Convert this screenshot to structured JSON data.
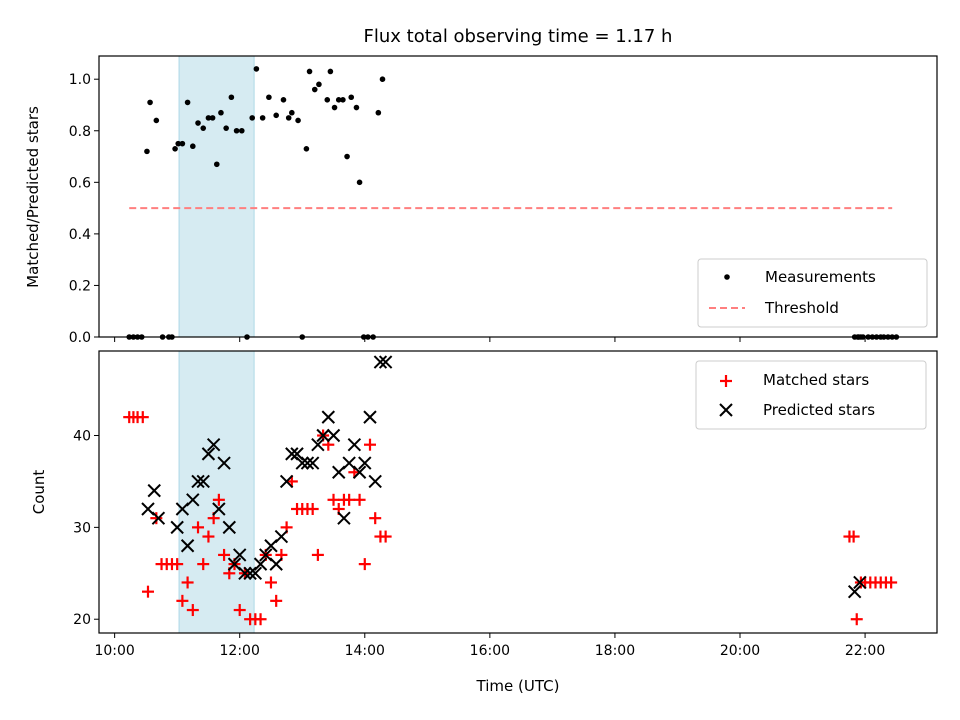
{
  "chart_data": [
    {
      "type": "scatter",
      "title": "Flux total observing time = 1.17 h",
      "xlabel": "",
      "ylabel": "Matched/Predicted stars",
      "xlim_hours": [
        9.75,
        23.15
      ],
      "ylim": [
        0,
        1.09
      ],
      "yticks": [
        0.0,
        0.2,
        0.4,
        0.6,
        0.8,
        1.0
      ],
      "ytick_labels": [
        "0.0",
        "0.2",
        "0.4",
        "0.6",
        "0.8",
        "1.0"
      ],
      "legend_position": "bottom-right",
      "shaded_span_hours": [
        11.03,
        12.23
      ],
      "shaded_color": "#add8e6",
      "series": [
        {
          "name": "Measurements",
          "marker": "dot",
          "color": "#000000",
          "x": [
            "10:14",
            "10:18",
            "10:22",
            "10:26",
            "10:31",
            "10:34",
            "10:40",
            "10:46",
            "10:52",
            "10:55",
            "10:58",
            "11:01",
            "11:05",
            "11:10",
            "11:15",
            "11:20",
            "11:25",
            "11:30",
            "11:34",
            "11:38",
            "11:42",
            "11:47",
            "11:52",
            "11:57",
            "12:02",
            "12:07",
            "12:12",
            "12:16",
            "12:22",
            "12:28",
            "12:35",
            "12:42",
            "12:47",
            "12:50",
            "12:56",
            "13:00",
            "13:04",
            "13:07",
            "13:12",
            "13:16",
            "13:24",
            "13:27",
            "13:31",
            "13:35",
            "13:39",
            "13:43",
            "13:47",
            "13:52",
            "13:55",
            "13:59",
            "14:03",
            "14:08",
            "14:13",
            "14:17",
            "21:50",
            "21:53",
            "21:54",
            "21:56",
            "21:58",
            "22:03",
            "22:07",
            "22:11",
            "22:15",
            "22:18",
            "22:22",
            "22:26",
            "22:30"
          ],
          "y": [
            0.0,
            0.0,
            0.0,
            0.0,
            0.72,
            0.91,
            0.84,
            0.0,
            0.0,
            0.0,
            0.73,
            0.75,
            0.75,
            0.91,
            0.74,
            0.83,
            0.81,
            0.85,
            0.85,
            0.67,
            0.87,
            0.81,
            0.93,
            0.8,
            0.8,
            0.0,
            0.85,
            1.04,
            0.85,
            0.93,
            0.86,
            0.92,
            0.85,
            0.87,
            0.84,
            0.0,
            0.73,
            1.03,
            0.96,
            0.98,
            0.92,
            1.03,
            0.89,
            0.92,
            0.92,
            0.7,
            0.93,
            0.89,
            0.6,
            0.0,
            0.0,
            0.0,
            0.87,
            1.0,
            0.0,
            0.0,
            0.0,
            0.0,
            0.0,
            0.0,
            0.0,
            0.0,
            0.0,
            0.0,
            0.0,
            0.0,
            0.0
          ]
        },
        {
          "name": "Threshold",
          "type": "line",
          "style": "dashed",
          "color": "#ff7f7f",
          "x": [
            "10:14",
            "22:26"
          ],
          "y": [
            0.5,
            0.5
          ]
        }
      ]
    },
    {
      "type": "scatter",
      "title": "",
      "xlabel": "Time (UTC)",
      "ylabel": "Count",
      "xlim_hours": [
        9.75,
        23.15
      ],
      "ylim": [
        18.5,
        49.2
      ],
      "yticks": [
        20,
        30,
        40
      ],
      "ytick_labels": [
        "20",
        "30",
        "40"
      ],
      "xticks_hours": [
        10,
        12,
        14,
        16,
        18,
        20,
        22
      ],
      "xtick_labels": [
        "10:00",
        "12:00",
        "14:00",
        "16:00",
        "18:00",
        "20:00",
        "22:00"
      ],
      "legend_position": "top-right",
      "shaded_span_hours": [
        11.03,
        12.23
      ],
      "shaded_color": "#add8e6",
      "series": [
        {
          "name": "Matched stars",
          "marker": "plus",
          "color": "#ff0000",
          "x": [
            "10:14",
            "10:18",
            "10:22",
            "10:27",
            "10:32",
            "10:40",
            "10:45",
            "10:50",
            "10:55",
            "11:00",
            "11:05",
            "11:10",
            "11:15",
            "11:20",
            "11:25",
            "11:30",
            "11:35",
            "11:40",
            "11:45",
            "11:50",
            "11:55",
            "12:00",
            "12:05",
            "12:10",
            "12:15",
            "12:20",
            "12:25",
            "12:30",
            "12:35",
            "12:40",
            "12:45",
            "12:50",
            "12:55",
            "13:00",
            "13:05",
            "13:10",
            "13:15",
            "13:20",
            "13:25",
            "13:30",
            "13:35",
            "13:40",
            "13:45",
            "13:50",
            "13:55",
            "14:00",
            "14:05",
            "14:10",
            "14:15",
            "14:20",
            "21:45",
            "21:49",
            "21:52",
            "21:56",
            "22:00",
            "22:05",
            "22:10",
            "22:15",
            "22:20",
            "22:25"
          ],
          "y": [
            42,
            42,
            42,
            42,
            23,
            31,
            26,
            26,
            26,
            26,
            22,
            24,
            21,
            30,
            26,
            29,
            31,
            33,
            27,
            25,
            26,
            21,
            25,
            20,
            20,
            20,
            27,
            24,
            22,
            27,
            30,
            35,
            32,
            32,
            32,
            32,
            27,
            40,
            39,
            33,
            32,
            33,
            33,
            36,
            33,
            26,
            39,
            31,
            29,
            29,
            29,
            29,
            20,
            24,
            24,
            24,
            24,
            24,
            24,
            24
          ],
          "labels": []
        },
        {
          "name": "Predicted stars",
          "marker": "x",
          "color": "#000000",
          "x": [
            "10:32",
            "10:38",
            "10:42",
            "11:00",
            "11:05",
            "11:10",
            "11:15",
            "11:20",
            "11:25",
            "11:30",
            "11:35",
            "11:40",
            "11:45",
            "11:50",
            "11:55",
            "12:00",
            "12:05",
            "12:10",
            "12:15",
            "12:20",
            "12:25",
            "12:30",
            "12:35",
            "12:40",
            "12:45",
            "12:50",
            "12:55",
            "13:00",
            "13:05",
            "13:10",
            "13:15",
            "13:20",
            "13:25",
            "13:30",
            "13:35",
            "13:40",
            "13:45",
            "13:50",
            "13:55",
            "14:00",
            "14:05",
            "14:10",
            "14:15",
            "14:20",
            "21:50",
            "21:55"
          ],
          "y": [
            32,
            34,
            31,
            30,
            32,
            28,
            33,
            35,
            35,
            38,
            39,
            32,
            37,
            30,
            26,
            27,
            25,
            25,
            25,
            26,
            27,
            28,
            26,
            29,
            35,
            38,
            38,
            37,
            37,
            37,
            39,
            40,
            42,
            40,
            36,
            31,
            37,
            39,
            36,
            37,
            42,
            35,
            48,
            48,
            23,
            24
          ]
        }
      ]
    }
  ]
}
